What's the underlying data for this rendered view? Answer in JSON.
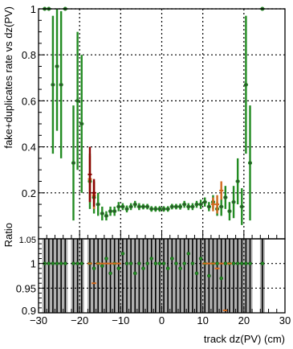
{
  "chart_data": [
    {
      "type": "scatter",
      "panel": "main",
      "ylabel": "fake+duplicates rate vs dz(PV)",
      "xlim": [
        -30,
        30
      ],
      "ylim": [
        0,
        1
      ],
      "y_ticks": [
        0.2,
        0.4,
        0.6,
        0.8,
        1
      ],
      "y_tick_labels": [
        "0.2",
        "0.4",
        "0.6",
        "0.8",
        "1"
      ],
      "grid": true,
      "series": [
        {
          "color": "#228b22",
          "x": [
            -28.5,
            -27.5,
            -26.5,
            -25.5,
            -24.5,
            -23.5,
            -21.5,
            -20.5,
            -19.5,
            -17.5,
            -16.5,
            -15.5,
            -14.5,
            -13.5,
            -12.5,
            -11.5,
            -10.5,
            -9.5,
            -8.5,
            -7.5,
            -6.5,
            -5.5,
            -4.5,
            -3.5,
            -2.5,
            -1.5,
            -0.5,
            0.5,
            1.5,
            2.5,
            3.5,
            4.5,
            5.5,
            6.5,
            7.5,
            8.5,
            9.5,
            10.5,
            11.5,
            12.5,
            13.5,
            14.5,
            15.5,
            16.5,
            17.5,
            18.5,
            19.5,
            20.5,
            21.5,
            24.5
          ],
          "y": [
            1.0,
            1.0,
            0.67,
            0.75,
            0.67,
            1.0,
            0.33,
            0.6,
            0.5,
            0.25,
            0.18,
            0.15,
            0.11,
            0.1,
            0.12,
            0.12,
            0.14,
            0.14,
            0.13,
            0.14,
            0.15,
            0.14,
            0.14,
            0.14,
            0.13,
            0.13,
            0.13,
            0.13,
            0.13,
            0.14,
            0.14,
            0.14,
            0.15,
            0.14,
            0.14,
            0.15,
            0.15,
            0.16,
            0.14,
            0.16,
            0.13,
            0.14,
            0.18,
            0.12,
            0.16,
            0.25,
            0.14,
            0.67,
            0.33,
            1.0
          ],
          "err": [
            0.0,
            0.0,
            0.3,
            0.28,
            0.32,
            0.0,
            0.25,
            0.3,
            0.3,
            0.12,
            0.07,
            0.05,
            0.03,
            0.02,
            0.02,
            0.02,
            0.02,
            0.015,
            0.015,
            0.015,
            0.015,
            0.015,
            0.012,
            0.012,
            0.012,
            0.012,
            0.012,
            0.012,
            0.012,
            0.012,
            0.012,
            0.013,
            0.015,
            0.015,
            0.015,
            0.015,
            0.02,
            0.02,
            0.02,
            0.03,
            0.03,
            0.04,
            0.05,
            0.04,
            0.07,
            0.1,
            0.08,
            0.3,
            0.25,
            0.0
          ]
        },
        {
          "color": "#d2691e",
          "x": [
            -17.5,
            -16.5,
            12.5,
            13.5,
            14.5
          ],
          "y": [
            0.26,
            0.19,
            0.15,
            0.15,
            0.21
          ],
          "err": [
            0.1,
            0.06,
            0.03,
            0.04,
            0.04
          ]
        },
        {
          "color": "#8b0000",
          "x": [
            -17.5,
            -16.5
          ],
          "y": [
            0.28,
            0.2
          ],
          "err": [
            0.12,
            0.06
          ]
        }
      ]
    },
    {
      "type": "scatter",
      "panel": "ratio",
      "xlabel": "track dz(PV) (cm)",
      "ylabel": "Ratio",
      "xlim": [
        -30,
        30
      ],
      "ylim": [
        0.9,
        1.05
      ],
      "x_ticks": [
        -30,
        -20,
        -10,
        0,
        10,
        20,
        30
      ],
      "x_tick_labels": [
        "−30",
        "−20",
        "−10",
        "0",
        "10",
        "20",
        "30"
      ],
      "y_ticks": [
        0.9,
        0.95,
        1
      ],
      "y_tick_labels": [
        "0.9",
        "0.95",
        "1"
      ],
      "top_tick_label": "1.05",
      "grid": true,
      "series": [
        {
          "color": "#228b22",
          "x": [
            -28.5,
            -27.5,
            -26.5,
            -25.5,
            -24.5,
            -23.5,
            -21.5,
            -20.5,
            -19.5,
            -17.5,
            -16.5,
            -15.5,
            -14.5,
            -13.5,
            -12.5,
            -11.5,
            -10.5,
            -9.5,
            -8.5,
            -7.5,
            -6.5,
            -5.5,
            -4.5,
            -3.5,
            -2.5,
            -1.5,
            -0.5,
            0.5,
            1.5,
            2.5,
            3.5,
            4.5,
            5.5,
            6.5,
            7.5,
            8.5,
            9.5,
            10.5,
            11.5,
            12.5,
            13.5,
            14.5,
            15.5,
            16.5,
            17.5,
            18.5,
            19.5,
            20.5,
            21.5,
            24.5
          ],
          "y": [
            1.0,
            1.0,
            1.0,
            1.0,
            1.0,
            1.0,
            1.0,
            1.0,
            1.0,
            1.0,
            0.99,
            1.0,
            0.995,
            1.01,
            0.98,
            1.0,
            0.99,
            1.02,
            1.0,
            1.0,
            0.98,
            1.0,
            0.99,
            1.0,
            1.01,
            1.0,
            1.0,
            1.0,
            0.99,
            1.01,
            1.0,
            0.99,
            1.0,
            1.02,
            1.0,
            0.98,
            1.01,
            1.0,
            0.975,
            1.0,
            1.0,
            0.97,
            1.0,
            1.0,
            1.0,
            1.0,
            1.0,
            1.0,
            1.0,
            1.0
          ],
          "err": [
            0.3,
            0.3,
            0.3,
            0.3,
            0.3,
            0.3,
            0.3,
            0.3,
            0.3,
            0.3,
            0.3,
            0.3,
            0.3,
            0.3,
            0.3,
            0.3,
            0.3,
            0.3,
            0.3,
            0.3,
            0.3,
            0.3,
            0.3,
            0.3,
            0.3,
            0.3,
            0.3,
            0.3,
            0.3,
            0.3,
            0.3,
            0.3,
            0.3,
            0.3,
            0.3,
            0.3,
            0.3,
            0.3,
            0.3,
            0.3,
            0.3,
            0.3,
            0.3,
            0.3,
            0.3,
            0.3,
            0.3,
            0.3,
            0.3,
            0.3
          ]
        },
        {
          "color": "#d2691e",
          "x": [
            -17.5,
            -16.5,
            -15.5,
            -14.5,
            -13.5,
            -12.5,
            -11.5,
            -10.5,
            10.5,
            11.5,
            12.5,
            13.5,
            14.5,
            15.5,
            16.5
          ],
          "y": [
            1.0,
            0.96,
            1.0,
            1.0,
            1.0,
            1.0,
            1.0,
            1.0,
            1.0,
            1.0,
            1.0,
            0.99,
            1.0,
            0.905,
            1.0
          ],
          "err": [
            0,
            0,
            0,
            0,
            0,
            0,
            0,
            0,
            0,
            0,
            0,
            0,
            0,
            0,
            0
          ]
        }
      ]
    }
  ]
}
